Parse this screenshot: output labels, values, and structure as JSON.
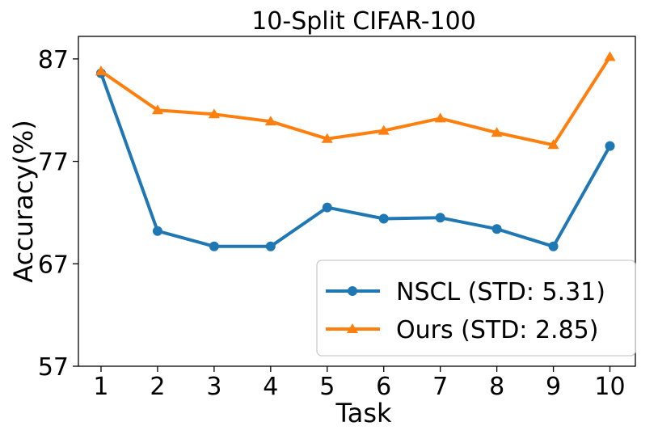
{
  "chart_data": {
    "type": "line",
    "title": "10-Split CIFAR-100",
    "xlabel": "Task",
    "ylabel": "Accuracy(%)",
    "categories": [
      "1",
      "2",
      "3",
      "4",
      "5",
      "6",
      "7",
      "8",
      "9",
      "10"
    ],
    "x": [
      1,
      2,
      3,
      4,
      5,
      6,
      7,
      8,
      9,
      10
    ],
    "ylim": [
      57,
      89.2
    ],
    "yticks": [
      57,
      67,
      77,
      87
    ],
    "xlim": [
      0.6,
      10.45
    ],
    "grid": false,
    "legend_position": "lower-right",
    "series": [
      {
        "name": "NSCL (STD: 5.31)",
        "color": "#1f77b4",
        "marker": "circle",
        "values": [
          85.6,
          70.2,
          68.7,
          68.7,
          72.5,
          71.4,
          71.5,
          70.4,
          68.7,
          78.5
        ]
      },
      {
        "name": "Ours (STD: 2.85)",
        "color": "#ff7f0e",
        "marker": "triangle",
        "values": [
          85.8,
          82.0,
          81.6,
          80.9,
          79.2,
          80.0,
          81.2,
          79.8,
          78.6,
          87.2
        ]
      }
    ]
  }
}
